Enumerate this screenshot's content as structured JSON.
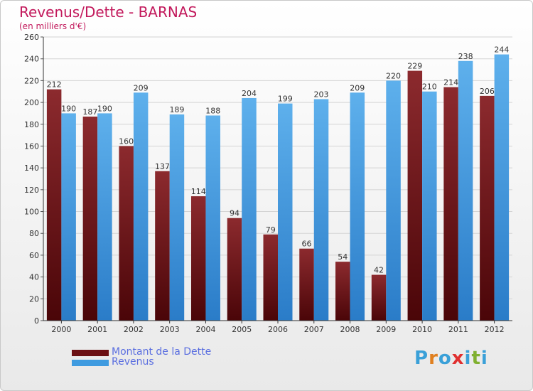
{
  "title": "Revenus/Dette - BARNAS",
  "subtitle": "(en milliers d'€)",
  "legend": [
    {
      "label": "Montant de la Dette",
      "color": "#6b1014"
    },
    {
      "label": "Revenus",
      "color": "#3f9be0"
    }
  ],
  "logo": {
    "text": "Proxiti",
    "letters": [
      "P",
      "r",
      "o",
      "x",
      "i",
      "t",
      "i"
    ],
    "colors": [
      "#3aa0d8",
      "#e08020",
      "#3aa0d8",
      "#e03030",
      "#3aa0d8",
      "#80b030",
      "#3aa0d8"
    ]
  },
  "chart_data": {
    "type": "bar",
    "categories": [
      "2000",
      "2001",
      "2002",
      "2003",
      "2004",
      "2005",
      "2006",
      "2007",
      "2008",
      "2009",
      "2010",
      "2011",
      "2012"
    ],
    "series": [
      {
        "name": "Montant de la Dette",
        "values": [
          212,
          187,
          160,
          137,
          114,
          94,
          79,
          66,
          54,
          42,
          229,
          214,
          206
        ],
        "color": "#6b1014"
      },
      {
        "name": "Revenus",
        "values": [
          190,
          190,
          209,
          189,
          188,
          204,
          199,
          203,
          209,
          220,
          210,
          238,
          244
        ],
        "color": "#3f9be0"
      }
    ],
    "ylim": [
      0,
      260
    ],
    "yticks": [
      0,
      20,
      40,
      60,
      80,
      100,
      120,
      140,
      160,
      180,
      200,
      220,
      240,
      260
    ],
    "grid": true,
    "legend_position": "bottom-left"
  }
}
